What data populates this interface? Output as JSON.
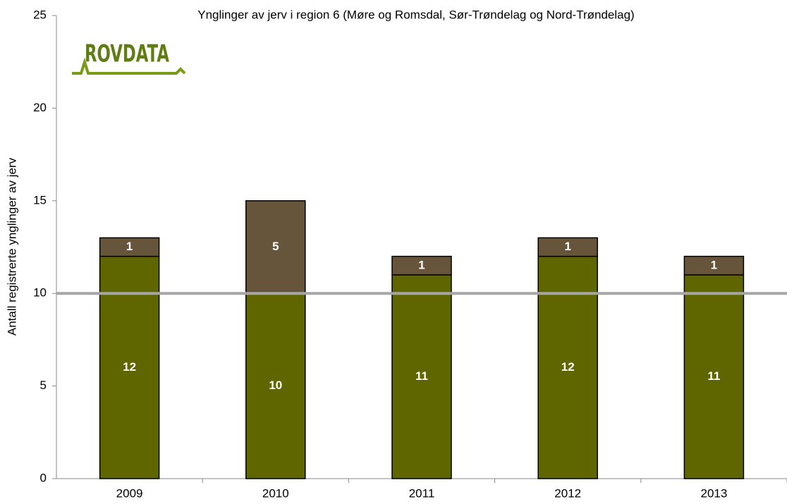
{
  "chart_data": {
    "type": "stacked_bar",
    "title": "Ynglinger av jerv i region 6 (Møre og Romsdal, Sør-Trøndelag og Nord-Trøndelag)",
    "y_label": "Antall registrerte ynglinger av jerv",
    "logo": "ROVDATA",
    "categories": [
      "2009",
      "2010",
      "2011",
      "2012",
      "2013"
    ],
    "series": [
      {
        "color": "#5f6600",
        "values": [
          12,
          10,
          11,
          12,
          11
        ]
      },
      {
        "color": "#66553a",
        "values": [
          1,
          5,
          1,
          1,
          1
        ]
      }
    ],
    "reference_line": 10,
    "reference_color": "#a6a6a6",
    "ylim": [
      0,
      25
    ],
    "yticks": [
      0,
      5,
      10,
      15,
      20,
      25
    ]
  }
}
